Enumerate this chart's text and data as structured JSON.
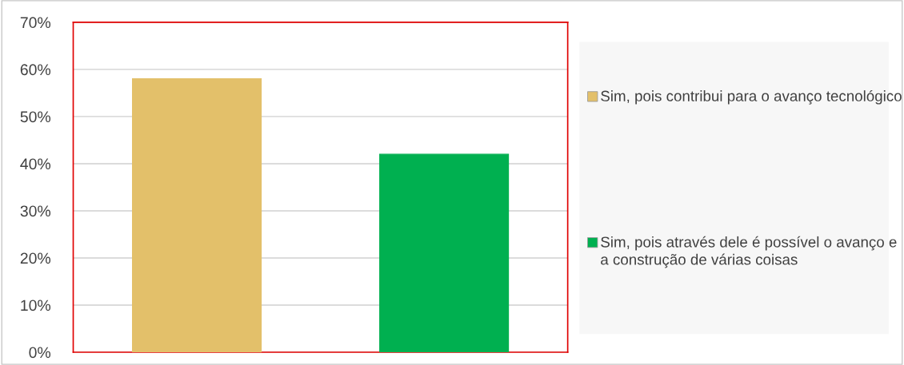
{
  "chart_data": {
    "type": "bar",
    "categories": [
      null,
      null
    ],
    "series": [
      {
        "name": "Sim, pois contribui para o avanço tecnológico",
        "color": "#e3c06a",
        "values": [
          58,
          null
        ]
      },
      {
        "name": "Sim, pois através dele é possível o avanço e a construção de várias coisas",
        "color": "#00b050",
        "values": [
          null,
          42
        ]
      }
    ],
    "ylim": [
      0,
      70
    ],
    "yticks": [
      {
        "value": 0,
        "label": "0%"
      },
      {
        "value": 10,
        "label": "10%"
      },
      {
        "value": 20,
        "label": "20%"
      },
      {
        "value": 30,
        "label": "30%"
      },
      {
        "value": 40,
        "label": "40%"
      },
      {
        "value": 50,
        "label": "50%"
      },
      {
        "value": 60,
        "label": "60%"
      },
      {
        "value": 70,
        "label": "70%"
      }
    ],
    "grid": "y",
    "legend": "right"
  }
}
